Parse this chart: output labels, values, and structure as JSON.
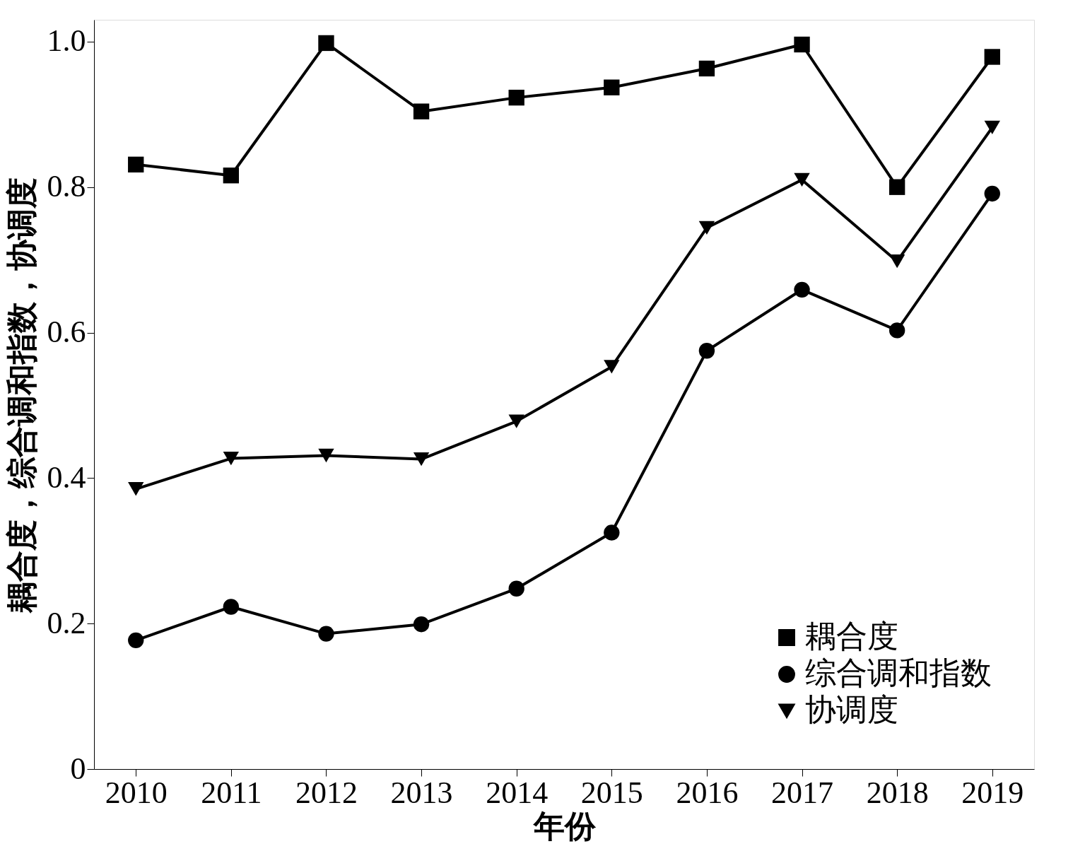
{
  "chart_data": {
    "type": "line",
    "xlabel": "年份",
    "ylabel": "耦合度，综合调和指数，协调度",
    "categories": [
      "2010",
      "2011",
      "2012",
      "2013",
      "2014",
      "2015",
      "2016",
      "2017",
      "2018",
      "2019"
    ],
    "series": [
      {
        "name": "耦合度",
        "color": "#000000",
        "marker": "square",
        "values": [
          0.831,
          0.816,
          0.998,
          0.904,
          0.923,
          0.937,
          0.963,
          0.996,
          0.8,
          0.979
        ]
      },
      {
        "name": "综合调和指数",
        "color": "#000000",
        "marker": "circle",
        "values": [
          0.177,
          0.223,
          0.186,
          0.199,
          0.248,
          0.325,
          0.575,
          0.659,
          0.603,
          0.791
        ]
      },
      {
        "name": "协调度",
        "color": "#000000",
        "marker": "triangle-down",
        "values": [
          0.385,
          0.427,
          0.431,
          0.426,
          0.478,
          0.553,
          0.744,
          0.81,
          0.698,
          0.882
        ]
      }
    ],
    "ylim": [
      0,
      1.03
    ],
    "yticks": [
      0,
      {
        "value": 0.2,
        "label": "0.2"
      },
      {
        "value": 0.4,
        "label": "0.4"
      },
      {
        "value": 0.6,
        "label": "0.6"
      },
      {
        "value": 0.8,
        "label": "0.8"
      },
      {
        "value": 1,
        "label": "1.0"
      }
    ],
    "grid": false,
    "legend": "bottom right",
    "line_style": "solid"
  }
}
